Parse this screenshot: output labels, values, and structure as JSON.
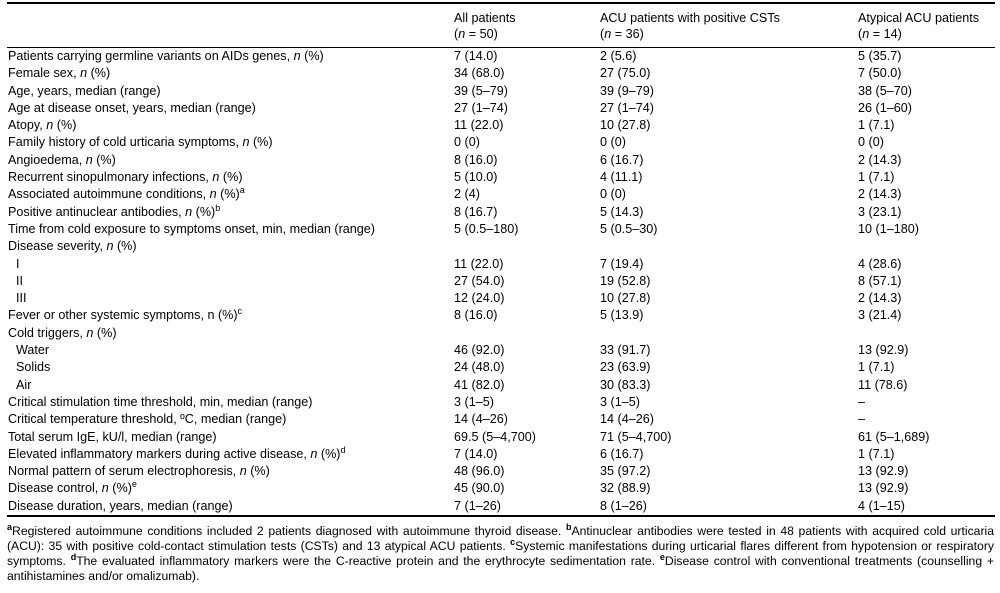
{
  "table": {
    "columns": [
      {
        "title": "All patients",
        "n_parts": [
          {
            "t": "("
          },
          {
            "t": "n",
            "s": "i"
          },
          {
            "t": " = 50)"
          }
        ]
      },
      {
        "title": "ACU patients with positive CSTs",
        "n_parts": [
          {
            "t": "("
          },
          {
            "t": "n",
            "s": "i"
          },
          {
            "t": " = 36)"
          }
        ]
      },
      {
        "title": "Atypical ACU patients",
        "n_parts": [
          {
            "t": "("
          },
          {
            "t": "n",
            "s": "i"
          },
          {
            "t": " = 14)"
          }
        ]
      }
    ],
    "rows": [
      {
        "indent": false,
        "label_parts": [
          {
            "t": "Patients carrying germline variants on AIDs genes, "
          },
          {
            "t": "n",
            "s": "i"
          },
          {
            "t": " (%)"
          }
        ],
        "values": [
          "7 (14.0)",
          "2 (5.6)",
          "5 (35.7)"
        ]
      },
      {
        "indent": false,
        "label_parts": [
          {
            "t": "Female sex, "
          },
          {
            "t": "n",
            "s": "i"
          },
          {
            "t": " (%)"
          }
        ],
        "values": [
          "34 (68.0)",
          "27 (75.0)",
          "7 (50.0)"
        ]
      },
      {
        "indent": false,
        "label_parts": [
          {
            "t": "Age, years, median (range)"
          }
        ],
        "values": [
          "39 (5–79)",
          "39 (9–79)",
          "38 (5–70)"
        ]
      },
      {
        "indent": false,
        "label_parts": [
          {
            "t": "Age at disease onset, years, median (range)"
          }
        ],
        "values": [
          "27 (1–74)",
          "27 (1–74)",
          "26 (1–60)"
        ]
      },
      {
        "indent": false,
        "label_parts": [
          {
            "t": "Atopy, "
          },
          {
            "t": "n",
            "s": "i"
          },
          {
            "t": " (%)"
          }
        ],
        "values": [
          "11 (22.0)",
          "10 (27.8)",
          "1 (7.1)"
        ]
      },
      {
        "indent": false,
        "label_parts": [
          {
            "t": "Family history of cold urticaria symptoms, "
          },
          {
            "t": "n",
            "s": "i"
          },
          {
            "t": " (%)"
          }
        ],
        "values": [
          "0 (0)",
          "0 (0)",
          "0 (0)"
        ]
      },
      {
        "indent": false,
        "label_parts": [
          {
            "t": "Angioedema, "
          },
          {
            "t": "n",
            "s": "i"
          },
          {
            "t": " (%)"
          }
        ],
        "values": [
          "8 (16.0)",
          "6 (16.7)",
          "2 (14.3)"
        ]
      },
      {
        "indent": false,
        "label_parts": [
          {
            "t": "Recurrent sinopulmonary infections, "
          },
          {
            "t": "n",
            "s": "i"
          },
          {
            "t": " (%)"
          }
        ],
        "values": [
          "5 (10.0)",
          "4 (11.1)",
          "1 (7.1)"
        ]
      },
      {
        "indent": false,
        "label_parts": [
          {
            "t": "Associated autoimmune conditions, "
          },
          {
            "t": "n",
            "s": "i"
          },
          {
            "t": " (%)"
          },
          {
            "t": "a",
            "s": "sup"
          }
        ],
        "values": [
          "2 (4)",
          "0 (0)",
          "2 (14.3)"
        ]
      },
      {
        "indent": false,
        "label_parts": [
          {
            "t": "Positive antinuclear antibodies, "
          },
          {
            "t": "n",
            "s": "i"
          },
          {
            "t": " (%)"
          },
          {
            "t": "b",
            "s": "sup"
          }
        ],
        "values": [
          "8 (16.7)",
          "5 (14.3)",
          "3 (23.1)"
        ]
      },
      {
        "indent": false,
        "label_parts": [
          {
            "t": "Time from cold exposure to symptoms onset, min, median (range)"
          }
        ],
        "values": [
          "5 (0.5–180)",
          "5 (0.5–30)",
          "10 (1–180)"
        ]
      },
      {
        "indent": false,
        "label_parts": [
          {
            "t": "Disease severity, "
          },
          {
            "t": "n",
            "s": "i"
          },
          {
            "t": " (%)"
          }
        ],
        "values": [
          "",
          "",
          ""
        ]
      },
      {
        "indent": true,
        "label_parts": [
          {
            "t": "I"
          }
        ],
        "values": [
          "11 (22.0)",
          "7 (19.4)",
          "4 (28.6)"
        ]
      },
      {
        "indent": true,
        "label_parts": [
          {
            "t": "II"
          }
        ],
        "values": [
          "27 (54.0)",
          "19 (52.8)",
          "8 (57.1)"
        ]
      },
      {
        "indent": true,
        "label_parts": [
          {
            "t": "III"
          }
        ],
        "values": [
          "12 (24.0)",
          "10 (27.8)",
          "2 (14.3)"
        ]
      },
      {
        "indent": false,
        "label_parts": [
          {
            "t": "Fever or other systemic symptoms, n (%)"
          },
          {
            "t": "c",
            "s": "sup"
          }
        ],
        "values": [
          "8 (16.0)",
          "5 (13.9)",
          "3 (21.4)"
        ]
      },
      {
        "indent": false,
        "label_parts": [
          {
            "t": "Cold triggers, "
          },
          {
            "t": "n",
            "s": "i"
          },
          {
            "t": " (%)"
          }
        ],
        "values": [
          "",
          "",
          ""
        ]
      },
      {
        "indent": true,
        "label_parts": [
          {
            "t": "Water"
          }
        ],
        "values": [
          "46 (92.0)",
          "33 (91.7)",
          "13 (92.9)"
        ]
      },
      {
        "indent": true,
        "label_parts": [
          {
            "t": "Solids"
          }
        ],
        "values": [
          "24 (48.0)",
          "23 (63.9)",
          "1 (7.1)"
        ]
      },
      {
        "indent": true,
        "label_parts": [
          {
            "t": "Air"
          }
        ],
        "values": [
          "41 (82.0)",
          "30 (83.3)",
          "11 (78.6)"
        ]
      },
      {
        "indent": false,
        "label_parts": [
          {
            "t": "Critical stimulation time threshold, min, median (range)"
          }
        ],
        "values": [
          "3 (1–5)",
          "3 (1–5)",
          "–"
        ]
      },
      {
        "indent": false,
        "label_parts": [
          {
            "t": "Critical temperature threshold, ºC, median (range)"
          }
        ],
        "values": [
          "14 (4–26)",
          "14 (4–26)",
          "–"
        ]
      },
      {
        "indent": false,
        "label_parts": [
          {
            "t": "Total serum IgE, kU/l, median (range)"
          }
        ],
        "values": [
          "69.5 (5–4,700)",
          "71 (5–4,700)",
          "61 (5–1,689)"
        ]
      },
      {
        "indent": false,
        "label_parts": [
          {
            "t": "Elevated inflammatory markers during active disease, "
          },
          {
            "t": "n",
            "s": "i"
          },
          {
            "t": " (%)"
          },
          {
            "t": "d",
            "s": "sup"
          }
        ],
        "values": [
          "7 (14.0)",
          "6 (16.7)",
          "1 (7.1)"
        ]
      },
      {
        "indent": false,
        "label_parts": [
          {
            "t": "Normal pattern of serum electrophoresis, "
          },
          {
            "t": "n",
            "s": "i"
          },
          {
            "t": " (%)"
          }
        ],
        "values": [
          "48 (96.0)",
          "35 (97.2)",
          "13 (92.9)"
        ]
      },
      {
        "indent": false,
        "label_parts": [
          {
            "t": "Disease control, "
          },
          {
            "t": "n",
            "s": "i"
          },
          {
            "t": " (%)"
          },
          {
            "t": "e",
            "s": "sup"
          }
        ],
        "values": [
          "45 (90.0)",
          "32 (88.9)",
          "13 (92.9)"
        ]
      },
      {
        "indent": false,
        "label_parts": [
          {
            "t": "Disease duration, years, median (range)"
          }
        ],
        "values": [
          "7 (1–26)",
          "8 (1–26)",
          "4 (1–15)"
        ]
      }
    ]
  },
  "footnote_parts": [
    {
      "t": "a",
      "s": "sup"
    },
    {
      "t": "Registered autoimmune conditions included 2 patients diagnosed with autoimmune thyroid disease. "
    },
    {
      "t": "b",
      "s": "sup"
    },
    {
      "t": "Antinuclear antibodies were tested in 48 patients with acquired cold urticaria (ACU): 35 with positive cold-contact stimulation tests (CSTs) and 13 atypical ACU patients. "
    },
    {
      "t": "c",
      "s": "sup"
    },
    {
      "t": "Systemic manifestations during urticarial flares different from hypotension or respiratory symptoms. "
    },
    {
      "t": "d",
      "s": "sup"
    },
    {
      "t": "The evaluated inflammatory markers were the C-reactive protein and the erythrocyte sedimentation rate. "
    },
    {
      "t": "e",
      "s": "sup"
    },
    {
      "t": "Disease control with conventional treatments (counselling + antihistamines and/or omalizumab)."
    }
  ]
}
